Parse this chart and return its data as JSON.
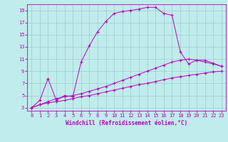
{
  "xlabel": "Windchill (Refroidissement éolien,°C)",
  "bg_color": "#c0ecec",
  "line_color": "#bb00bb",
  "grid_color": "#99cccc",
  "xlim": [
    -0.5,
    23.5
  ],
  "ylim": [
    2.5,
    20
  ],
  "xticks": [
    0,
    1,
    2,
    3,
    4,
    5,
    6,
    7,
    8,
    9,
    10,
    11,
    12,
    13,
    14,
    15,
    16,
    17,
    18,
    19,
    20,
    21,
    22,
    23
  ],
  "yticks": [
    3,
    5,
    7,
    9,
    11,
    13,
    15,
    17,
    19
  ],
  "line1_x": [
    0,
    1,
    2,
    3,
    4,
    5,
    6,
    7,
    8,
    9,
    10,
    11,
    12,
    13,
    14,
    15,
    16,
    17,
    18,
    19,
    20,
    21,
    22,
    23
  ],
  "line1_y": [
    3.0,
    3.5,
    3.8,
    4.0,
    4.2,
    4.5,
    4.8,
    5.0,
    5.3,
    5.6,
    5.9,
    6.2,
    6.5,
    6.8,
    7.0,
    7.3,
    7.6,
    7.9,
    8.1,
    8.3,
    8.5,
    8.7,
    8.9,
    9.0
  ],
  "line2_x": [
    0,
    1,
    2,
    3,
    4,
    5,
    6,
    7,
    8,
    9,
    10,
    11,
    12,
    13,
    14,
    15,
    16,
    17,
    18,
    19,
    20,
    21,
    22,
    23
  ],
  "line2_y": [
    3.0,
    3.5,
    4.0,
    4.5,
    4.8,
    5.0,
    5.3,
    5.7,
    6.1,
    6.5,
    7.0,
    7.5,
    8.0,
    8.5,
    9.0,
    9.5,
    10.0,
    10.5,
    10.8,
    11.0,
    10.8,
    10.5,
    10.2,
    9.8
  ],
  "line3_x": [
    0,
    1,
    2,
    3,
    4,
    5,
    6,
    7,
    8,
    9,
    10,
    11,
    12,
    13,
    14,
    15,
    16,
    17,
    18,
    19,
    20,
    21,
    22,
    23
  ],
  "line3_y": [
    3.0,
    4.2,
    7.8,
    4.2,
    5.0,
    4.8,
    10.5,
    13.2,
    15.5,
    17.2,
    18.5,
    18.8,
    19.0,
    19.2,
    19.5,
    19.5,
    18.5,
    18.2,
    12.2,
    10.2,
    10.8,
    10.8,
    10.3,
    9.8
  ],
  "tick_font_size": 5.0,
  "label_font_size": 5.5,
  "figsize": [
    3.2,
    2.0
  ],
  "dpi": 100
}
